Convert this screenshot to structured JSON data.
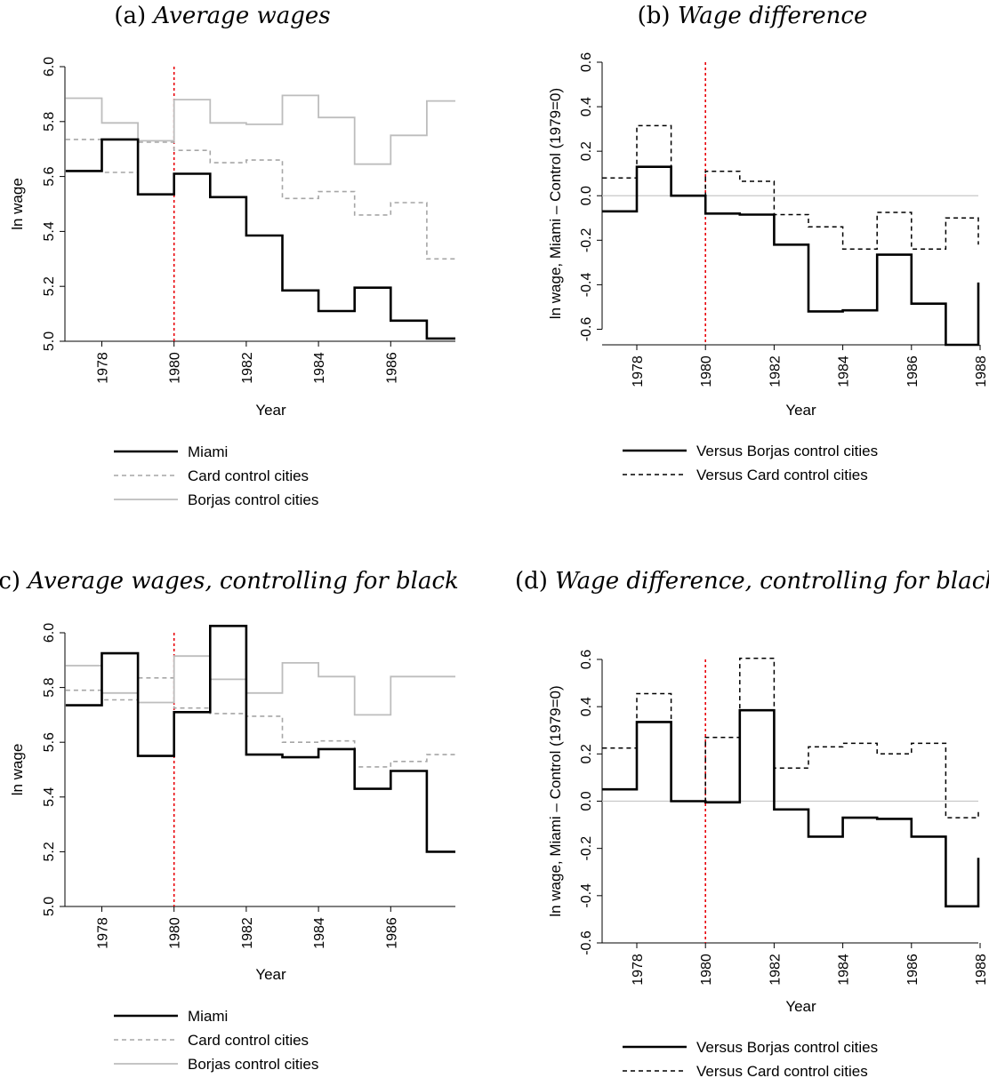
{
  "chart_data": [
    {
      "id": "a",
      "type": "line",
      "step": true,
      "title_prefix": "(a)",
      "title": "Average wages",
      "xlabel": "Year",
      "ylabel": "ln wage",
      "xlim": [
        1977,
        1988
      ],
      "ylim": [
        5.0,
        6.0
      ],
      "xticks": [
        1978,
        1980,
        1982,
        1984,
        1986
      ],
      "yticks": [
        "5.0",
        "5.2",
        "5.4",
        "5.6",
        "5.8",
        "6.0"
      ],
      "vline": 1980,
      "series": [
        {
          "name": "Miami",
          "style": "solid-black",
          "x": [
            1977,
            1978,
            1979,
            1980,
            1981,
            1982,
            1983,
            1984,
            1985,
            1986,
            1987
          ],
          "values": [
            5.62,
            5.735,
            5.535,
            5.61,
            5.525,
            5.385,
            5.185,
            5.11,
            5.195,
            5.075,
            5.01
          ]
        },
        {
          "name": "Card control cities",
          "style": "dashed-gray",
          "x": [
            1977,
            1978,
            1979,
            1980,
            1981,
            1982,
            1983,
            1984,
            1985,
            1986,
            1987
          ],
          "values": [
            5.735,
            5.615,
            5.725,
            5.695,
            5.65,
            5.66,
            5.52,
            5.545,
            5.46,
            5.505,
            5.3
          ]
        },
        {
          "name": "Borjas control cities",
          "style": "solid-gray",
          "x": [
            1977,
            1978,
            1979,
            1980,
            1981,
            1982,
            1983,
            1984,
            1985,
            1986,
            1987
          ],
          "values": [
            5.885,
            5.795,
            5.73,
            5.88,
            5.795,
            5.79,
            5.895,
            5.815,
            5.645,
            5.75,
            5.875
          ]
        }
      ],
      "legend": [
        "Miami",
        "Card control cities",
        "Borjas control cities"
      ]
    },
    {
      "id": "b",
      "type": "line",
      "step": true,
      "title_prefix": "(b)",
      "title": "Wage difference",
      "xlabel": "Year",
      "ylabel": "ln wage, Miami – Control (1979=0)",
      "xlim": [
        1977,
        1988
      ],
      "ylim": [
        -0.67,
        0.6
      ],
      "xticks": [
        1978,
        1980,
        1982,
        1984,
        1986,
        1988
      ],
      "yticks": [
        "-0.6",
        "-0.4",
        "-0.2",
        "0.0",
        "0.2",
        "0.4",
        "0.6"
      ],
      "hline": 0,
      "vline": 1980,
      "series": [
        {
          "name": "Versus Borjas control cities",
          "style": "solid-black",
          "x": [
            1977,
            1978,
            1979,
            1980,
            1981,
            1982,
            1983,
            1984,
            1985,
            1986,
            1987
          ],
          "values": [
            -0.07,
            0.13,
            0.0,
            -0.08,
            -0.085,
            -0.22,
            -0.52,
            -0.515,
            -0.265,
            -0.485,
            -0.67
          ],
          "end_value": -0.39
        },
        {
          "name": "Versus Card control cities",
          "style": "dashed-black",
          "x": [
            1977,
            1978,
            1979,
            1980,
            1981,
            1982,
            1983,
            1984,
            1985,
            1986,
            1987
          ],
          "values": [
            0.08,
            0.315,
            0.0,
            0.11,
            0.065,
            -0.085,
            -0.14,
            -0.24,
            -0.075,
            -0.24,
            -0.1
          ],
          "end_value": -0.22
        }
      ],
      "legend": [
        "Versus Borjas control cities",
        "Versus Card control cities"
      ]
    },
    {
      "id": "c",
      "type": "line",
      "step": true,
      "title_prefix": "(c)",
      "title": "Average wages, controlling for black",
      "xlabel": "Year",
      "ylabel": "ln wage",
      "xlim": [
        1977,
        1988
      ],
      "ylim": [
        5.0,
        6.0
      ],
      "xticks": [
        1978,
        1980,
        1982,
        1984,
        1986
      ],
      "yticks": [
        "5.0",
        "5.2",
        "5.4",
        "5.6",
        "5.8",
        "6.0"
      ],
      "vline": 1980,
      "series": [
        {
          "name": "Miami",
          "style": "solid-black",
          "x": [
            1977,
            1978,
            1979,
            1980,
            1981,
            1982,
            1983,
            1984,
            1985,
            1986,
            1987
          ],
          "values": [
            5.735,
            5.925,
            5.55,
            5.71,
            6.025,
            5.555,
            5.545,
            5.575,
            5.43,
            5.495,
            5.2
          ]
        },
        {
          "name": "Card control cities",
          "style": "dashed-gray",
          "x": [
            1977,
            1978,
            1979,
            1980,
            1981,
            1982,
            1983,
            1984,
            1985,
            1986,
            1987
          ],
          "values": [
            5.79,
            5.755,
            5.835,
            5.725,
            5.705,
            5.695,
            5.6,
            5.605,
            5.51,
            5.53,
            5.555
          ]
        },
        {
          "name": "Borjas control cities",
          "style": "solid-gray",
          "x": [
            1977,
            1978,
            1979,
            1980,
            1981,
            1982,
            1983,
            1984,
            1985,
            1986,
            1987
          ],
          "values": [
            5.88,
            5.78,
            5.745,
            5.915,
            5.83,
            5.78,
            5.89,
            5.84,
            5.7,
            5.84,
            5.84
          ]
        }
      ],
      "legend": [
        "Miami",
        "Card control cities",
        "Borjas control cities"
      ]
    },
    {
      "id": "d",
      "type": "line",
      "step": true,
      "title_prefix": "(d)",
      "title": "Wage difference, controlling for black",
      "xlabel": "Year",
      "ylabel": "ln wage, Miami – Control (1979=0)",
      "xlim": [
        1977,
        1988
      ],
      "ylim": [
        -0.6,
        0.6
      ],
      "xticks": [
        1978,
        1980,
        1982,
        1984,
        1986,
        1988
      ],
      "yticks": [
        "-0.6",
        "-0.4",
        "-0.2",
        "0.0",
        "0.2",
        "0.4",
        "0.6"
      ],
      "hline": 0,
      "vline": 1980,
      "series": [
        {
          "name": "Versus Borjas control cities",
          "style": "solid-black",
          "x": [
            1977,
            1978,
            1979,
            1980,
            1981,
            1982,
            1983,
            1984,
            1985,
            1986,
            1987
          ],
          "values": [
            0.05,
            0.335,
            0.0,
            -0.005,
            0.385,
            -0.035,
            -0.15,
            -0.07,
            -0.075,
            -0.15,
            -0.445
          ],
          "end_value": -0.24
        },
        {
          "name": "Versus Card control cities",
          "style": "dashed-black",
          "x": [
            1977,
            1978,
            1979,
            1980,
            1981,
            1982,
            1983,
            1984,
            1985,
            1986,
            1987
          ],
          "values": [
            0.225,
            0.455,
            0.0,
            0.27,
            0.605,
            0.14,
            0.23,
            0.245,
            0.2,
            0.245,
            -0.07
          ],
          "end_value": -0.04
        }
      ],
      "legend": [
        "Versus Borjas control cities",
        "Versus Card control cities"
      ]
    }
  ],
  "colors": {
    "miami": "#000000",
    "card_gray": "#a6a6a6",
    "borjas_gray": "#bdbdbd",
    "vline_red": "#e8000b",
    "zero_line": "#c8c8c8"
  }
}
